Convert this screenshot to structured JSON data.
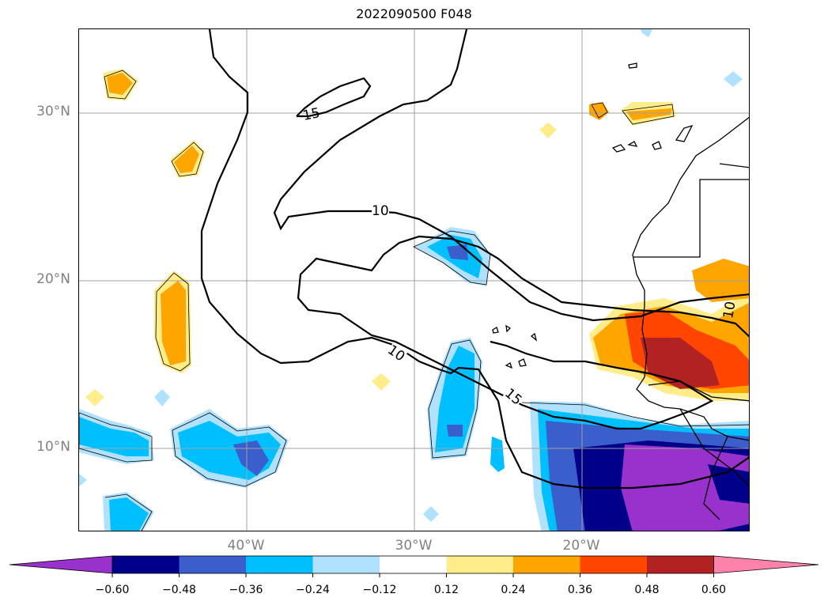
{
  "title": "2022090500 F048",
  "lat_labels": [
    {
      "text": "30°N",
      "lat": 30
    },
    {
      "text": "20°N",
      "lat": 20
    },
    {
      "text": "10°N",
      "lat": 10
    }
  ],
  "lon_labels": [
    {
      "text": "40°W",
      "lon": -40
    },
    {
      "text": "30°W",
      "lon": -30
    },
    {
      "text": "20°W",
      "lon": -20
    }
  ],
  "contour_labels": [
    "15",
    "10",
    "10",
    "15",
    "10"
  ],
  "colorbar": {
    "ticks": [
      "−0.60",
      "−0.48",
      "−0.36",
      "−0.24",
      "−0.12",
      "0.12",
      "0.24",
      "0.36",
      "0.48",
      "0.60"
    ],
    "colors": [
      "#9932cc",
      "#00008b",
      "#3a5fcd",
      "#00bfff",
      "#b0e2ff",
      "#ffffff",
      "#ffec8b",
      "#ffa500",
      "#ff4500",
      "#b22222",
      "#ff82ab"
    ]
  },
  "grid_color": "#a0a0a0"
}
